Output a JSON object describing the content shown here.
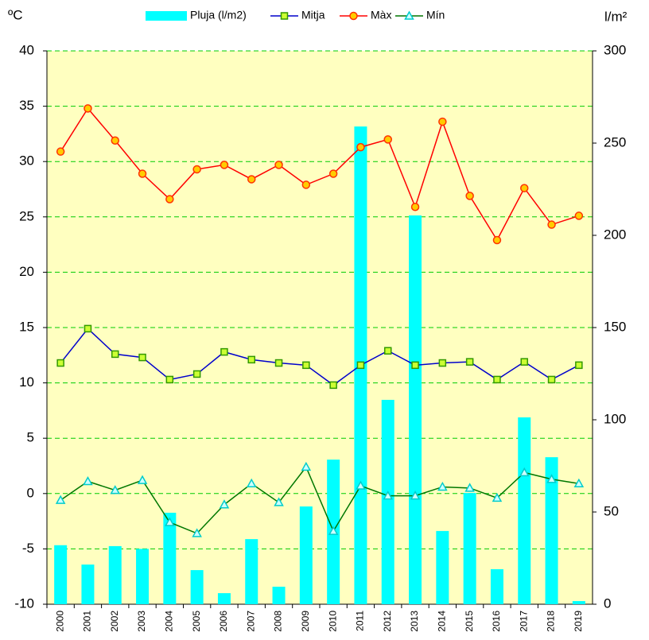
{
  "chart_data": {
    "type": "bar",
    "ylabel": "ºC",
    "y2label": "l/m²",
    "categories": [
      "2000",
      "2001",
      "2002",
      "2003",
      "2004",
      "2005",
      "2006",
      "2007",
      "2008",
      "2009",
      "2010",
      "2011",
      "2012",
      "2013",
      "2014",
      "2015",
      "2016",
      "2017",
      "2018",
      "2019"
    ],
    "series": [
      {
        "name": "Pluja (l/m2)",
        "type": "bar",
        "axis": "y2",
        "color": "#00ffff",
        "values": [
          32,
          21.5,
          31.5,
          30,
          49.6,
          18.5,
          6,
          35.3,
          9.5,
          53,
          78.4,
          259,
          110.8,
          210.8,
          39.7,
          60.3,
          19,
          101.3,
          79.7,
          1.7
        ]
      },
      {
        "name": "Mitja",
        "type": "line",
        "color": "#0000cc",
        "marker": "square",
        "marker_color": "#ccff33",
        "marker_edge": "#339900",
        "values": [
          11.8,
          14.9,
          12.6,
          12.3,
          10.3,
          10.8,
          12.8,
          12.1,
          11.8,
          11.6,
          9.8,
          11.6,
          12.9,
          11.6,
          11.8,
          11.9,
          10.3,
          11.9,
          10.3,
          11.6
        ]
      },
      {
        "name": "Màx",
        "type": "line",
        "color": "#ff0000",
        "marker": "circle",
        "marker_color": "#ffcc00",
        "marker_edge": "#ff3300",
        "values": [
          30.9,
          34.8,
          31.9,
          28.9,
          26.6,
          29.3,
          29.7,
          28.4,
          29.7,
          27.9,
          28.9,
          31.3,
          32.0,
          25.9,
          33.6,
          26.9,
          22.9,
          27.6,
          24.3,
          25.1
        ]
      },
      {
        "name": "Mín",
        "type": "line",
        "color": "#007700",
        "marker": "triangle",
        "marker_color": "#ccffff",
        "marker_edge": "#00cccc",
        "values": [
          -0.6,
          1.1,
          0.3,
          1.2,
          -2.6,
          -3.6,
          -1.0,
          0.9,
          -0.8,
          2.4,
          -3.4,
          0.7,
          -0.2,
          -0.2,
          0.6,
          0.5,
          -0.4,
          1.9,
          1.3,
          0.9
        ]
      }
    ],
    "ylim": [
      -10,
      40
    ],
    "yticks": [
      -10,
      -5,
      0,
      5,
      10,
      15,
      20,
      25,
      30,
      35,
      40
    ],
    "y2lim": [
      0,
      300
    ],
    "y2ticks": [
      0,
      50,
      100,
      150,
      200,
      250,
      300
    ],
    "grid": true,
    "grid_color": "#00cc00",
    "plot_background": "#ffffc0",
    "legend": "top"
  }
}
